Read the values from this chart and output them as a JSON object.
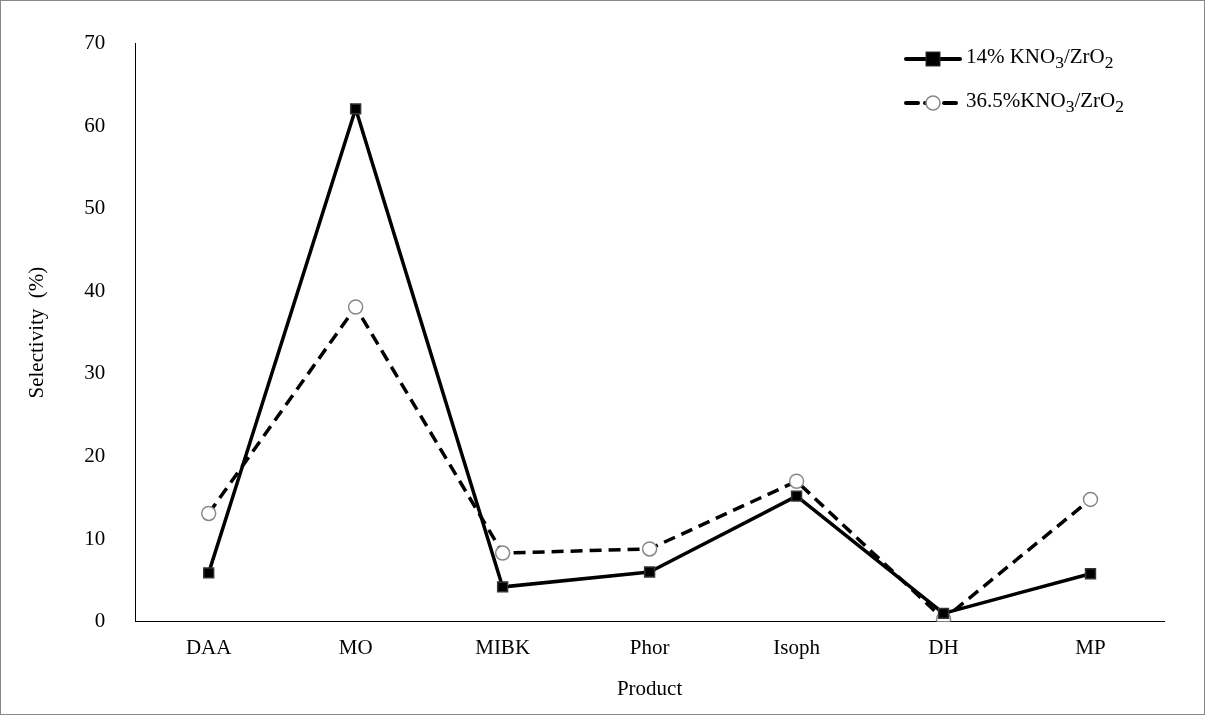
{
  "chart_data": {
    "type": "line",
    "xlabel": "Product",
    "ylabel": "Selectivity  (%)",
    "categories": [
      "DAA",
      "MO",
      "MIBK",
      "Phor",
      "Isoph",
      "DH",
      "MP"
    ],
    "series": [
      {
        "name": "14%  KNO$_{3}$/ZrO$_{2}$",
        "color": "#000000",
        "marker": "square",
        "line_style": "solid",
        "values": [
          5.9,
          62.1,
          4.2,
          6.0,
          15.2,
          1.0,
          5.8
        ]
      },
      {
        "name": "36.5%KNO$_{3}$/ZrO$_{2}$",
        "color": "#000000",
        "marker": "circle",
        "line_style": "dashed",
        "values": [
          13.1,
          38.1,
          8.3,
          8.8,
          17.0,
          0.3,
          14.8
        ]
      }
    ],
    "ylim": [
      0,
      70
    ],
    "yticks": [
      0,
      10,
      20,
      30,
      40,
      50,
      60,
      70
    ],
    "grid": false,
    "legend": "top right"
  }
}
